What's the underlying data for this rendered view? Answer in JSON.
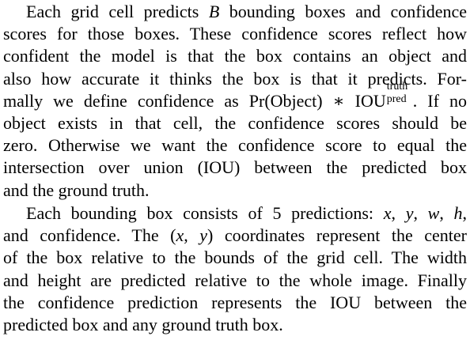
{
  "paragraph1": {
    "l1a": "Each grid cell predicts ",
    "l1_var": "B",
    "l1b": " bounding boxes and confidence",
    "l2": "scores for those boxes. These confidence scores reflect how",
    "l3": "confident the model is that the box contains an object and",
    "l4": "also how accurate it thinks the box is that it predicts. For-",
    "l5a": "mally we define confidence as ",
    "l5_pr": "Pr(Object) ∗ IOU",
    "l5_sup": "truth",
    "l5_sub": "pred",
    "l5b": ". If no",
    "l6": "object exists in that cell, the confidence scores should be",
    "l7": "zero. Otherwise we want the confidence score to equal the",
    "l8": "intersection over union (IOU) between the predicted box",
    "l9": "and the ground truth."
  },
  "paragraph2": {
    "l1a": "Each bounding box consists of 5 predictions: ",
    "l1_x": "x",
    "l1_y": "y",
    "l1_w": "w",
    "l1_h": "h",
    "sep": ", ",
    "l2a": "and confidence. The ",
    "l2_coord_open": "(",
    "l2_coord_x": "x",
    "l2_coord_comma": ", ",
    "l2_coord_y": "y",
    "l2_coord_close": ")",
    "l2b": " coordinates represent the center",
    "l3": "of the box relative to the bounds of the grid cell. The width",
    "l4": "and height are predicted relative to the whole image. Finally",
    "l5": "the confidence prediction represents the IOU between the",
    "l6": "predicted box and any ground truth box."
  }
}
